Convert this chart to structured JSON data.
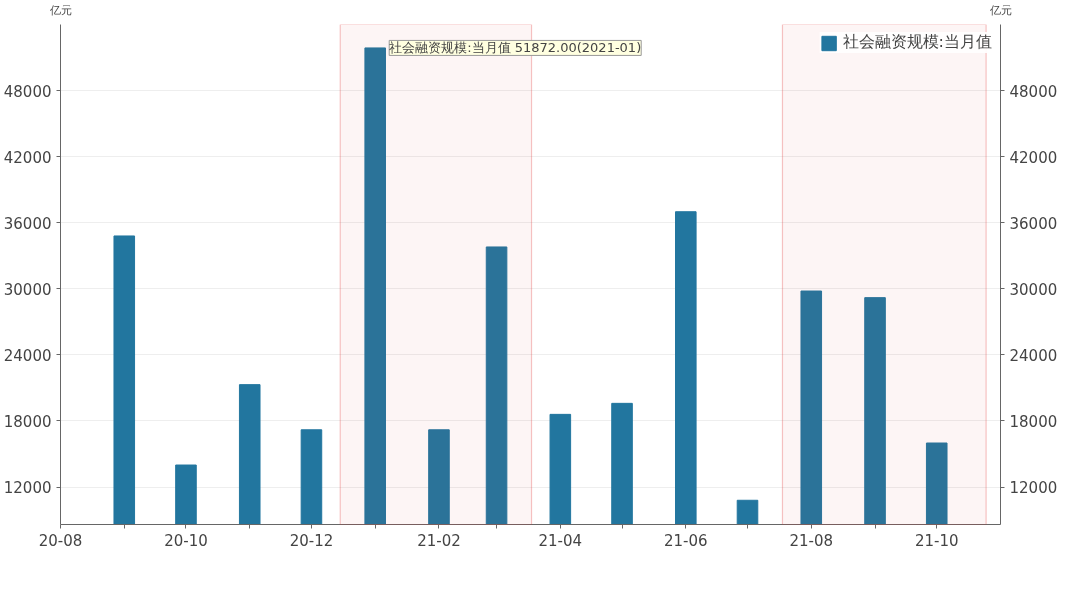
{
  "chart_data": {
    "type": "bar",
    "x": [
      "2020-09",
      "2020-10",
      "2020-11",
      "2020-12",
      "2021-01",
      "2021-02",
      "2021-03",
      "2021-04",
      "2021-05",
      "2021-06",
      "2021-07",
      "2021-08",
      "2021-09",
      "2021-10"
    ],
    "series": [
      {
        "name": "社会融资规模:当月值",
        "color": "#22769f",
        "values": [
          34800,
          14000,
          21300,
          17200,
          51872,
          17200,
          33800,
          18600,
          19600,
          37000,
          10800,
          29800,
          29200,
          16000
        ]
      }
    ],
    "ylabel": "亿元",
    "y2label": "亿元",
    "ylim": [
      8600,
      54000
    ],
    "yticks": [
      12000,
      18000,
      24000,
      30000,
      36000,
      42000,
      48000
    ],
    "y2lim": [
      8600,
      54000
    ],
    "y2ticks": [
      12000,
      18000,
      24000,
      30000,
      36000,
      42000,
      48000
    ],
    "xlim": [
      "2020-08",
      "2021-11"
    ],
    "xticks": [
      {
        "value": "2020-08",
        "label": "20-08"
      },
      {
        "value": "2020-09",
        "label": null
      },
      {
        "value": "2020-10",
        "label": "20-10"
      },
      {
        "value": "2020-11",
        "label": null
      },
      {
        "value": "2020-12",
        "label": "20-12"
      },
      {
        "value": "2021-01",
        "label": null
      },
      {
        "value": "2021-02",
        "label": "21-02"
      },
      {
        "value": "2021-03",
        "label": null
      },
      {
        "value": "2021-04",
        "label": "21-04"
      },
      {
        "value": "2021-05",
        "label": null
      },
      {
        "value": "2021-06",
        "label": "21-06"
      },
      {
        "value": "2021-07",
        "label": null
      },
      {
        "value": "2021-08",
        "label": "21-08"
      },
      {
        "value": "2021-09",
        "label": null
      },
      {
        "value": "2021-10",
        "label": "21-10"
      }
    ],
    "annotations": [
      {
        "text": "社会融资规模:当月值 51872.00(2021-01)",
        "x": "2021-01",
        "y": 51872
      }
    ],
    "bands": [
      {
        "axis": "x",
        "from": "2020-12-15",
        "to": "2021-03-18",
        "color": "#e03c3c"
      },
      {
        "axis": "x",
        "from": "2021-07-18",
        "to": "2021-10-25",
        "color": "#e03c3c"
      }
    ],
    "grid": "y",
    "legend": "top right"
  }
}
